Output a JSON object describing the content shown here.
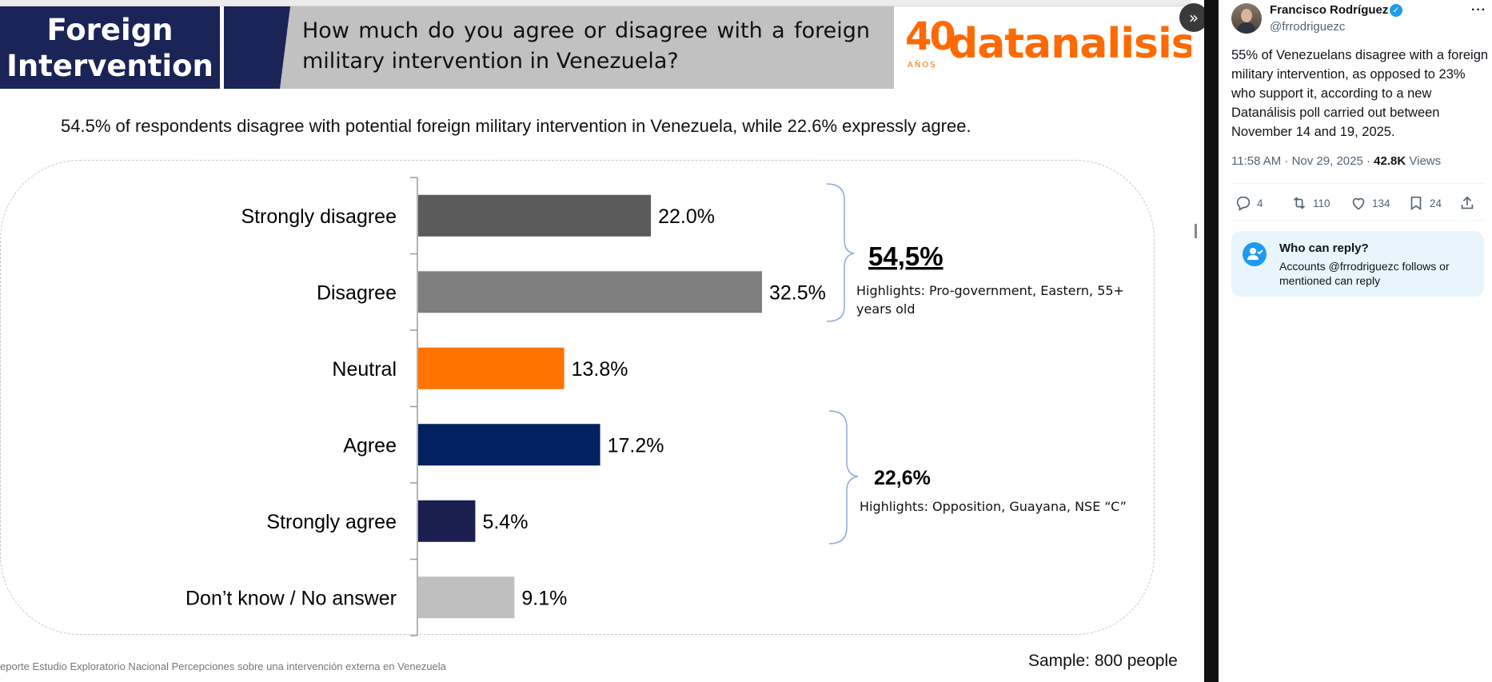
{
  "slide": {
    "title_line1": "Foreign",
    "title_line2": "Intervention",
    "question": "How much do you agree or disagree with a foreign military intervention in Venezuela?",
    "brand_years": "40",
    "brand_anos": "AÑOS",
    "brand_name": "datanalisis",
    "subtitle": "54.5% of respondents disagree with potential foreign military intervention in Venezuela, while 22.6% expressly agree.",
    "footer_source": "eporte Estudio Exploratorio Nacional Percepciones sobre una intervención externa en Venezuela",
    "footer_sample": "Sample: 800 people",
    "colors": {
      "navy": "#1a2456",
      "orange": "#ff6a00",
      "gray_box": "#c1c1c1"
    }
  },
  "chart_data": {
    "type": "bar",
    "orientation": "horizontal",
    "categories": [
      "Strongly disagree",
      "Disagree",
      "Neutral",
      "Agree",
      "Strongly agree",
      "Don’t know / No answer"
    ],
    "values": [
      22.0,
      32.5,
      13.8,
      17.2,
      5.4,
      9.1
    ],
    "value_labels": [
      "22.0%",
      "32.5%",
      "13.8%",
      "17.2%",
      "5.4%",
      "9.1%"
    ],
    "colors": [
      "#5b5b5b",
      "#7f7f7f",
      "#ff7300",
      "#002060",
      "#1a1f4f",
      "#bfbfbf"
    ],
    "xlim": [
      0,
      40
    ],
    "groups": [
      {
        "total": "54,5%",
        "highlights": "Highlights: Pro-government, Eastern, 55+ years old",
        "highlights_line1": "Highlights: Pro-government, Eastern, 55+",
        "highlights_line2": "years old",
        "span": [
          0,
          1
        ]
      },
      {
        "total": "22,6%",
        "highlights": "Highlights: Opposition, Guayana, NSE “C”",
        "span": [
          3,
          4
        ]
      }
    ]
  },
  "tweet": {
    "author_name": "Francisco Rodríguez",
    "author_handle": "@frrodriguezc",
    "text": "55% of Venezuelans disagree with a foreign military intervention, as opposed to 23% who support it, according to a new Datanálisis poll carried out between November 14 and 19, 2025.",
    "timestamp": "11:58 AM · Nov 29, 2025 ·",
    "views_count": "42.8K",
    "views_label": "Views",
    "replies": "4",
    "reposts": "110",
    "likes": "134",
    "bookmarks": "24",
    "reply_title": "Who can reply?",
    "reply_desc": "Accounts @frrodriguezc follows or mentioned can reply",
    "more_glyph": "···",
    "expand_glyph": "»"
  }
}
